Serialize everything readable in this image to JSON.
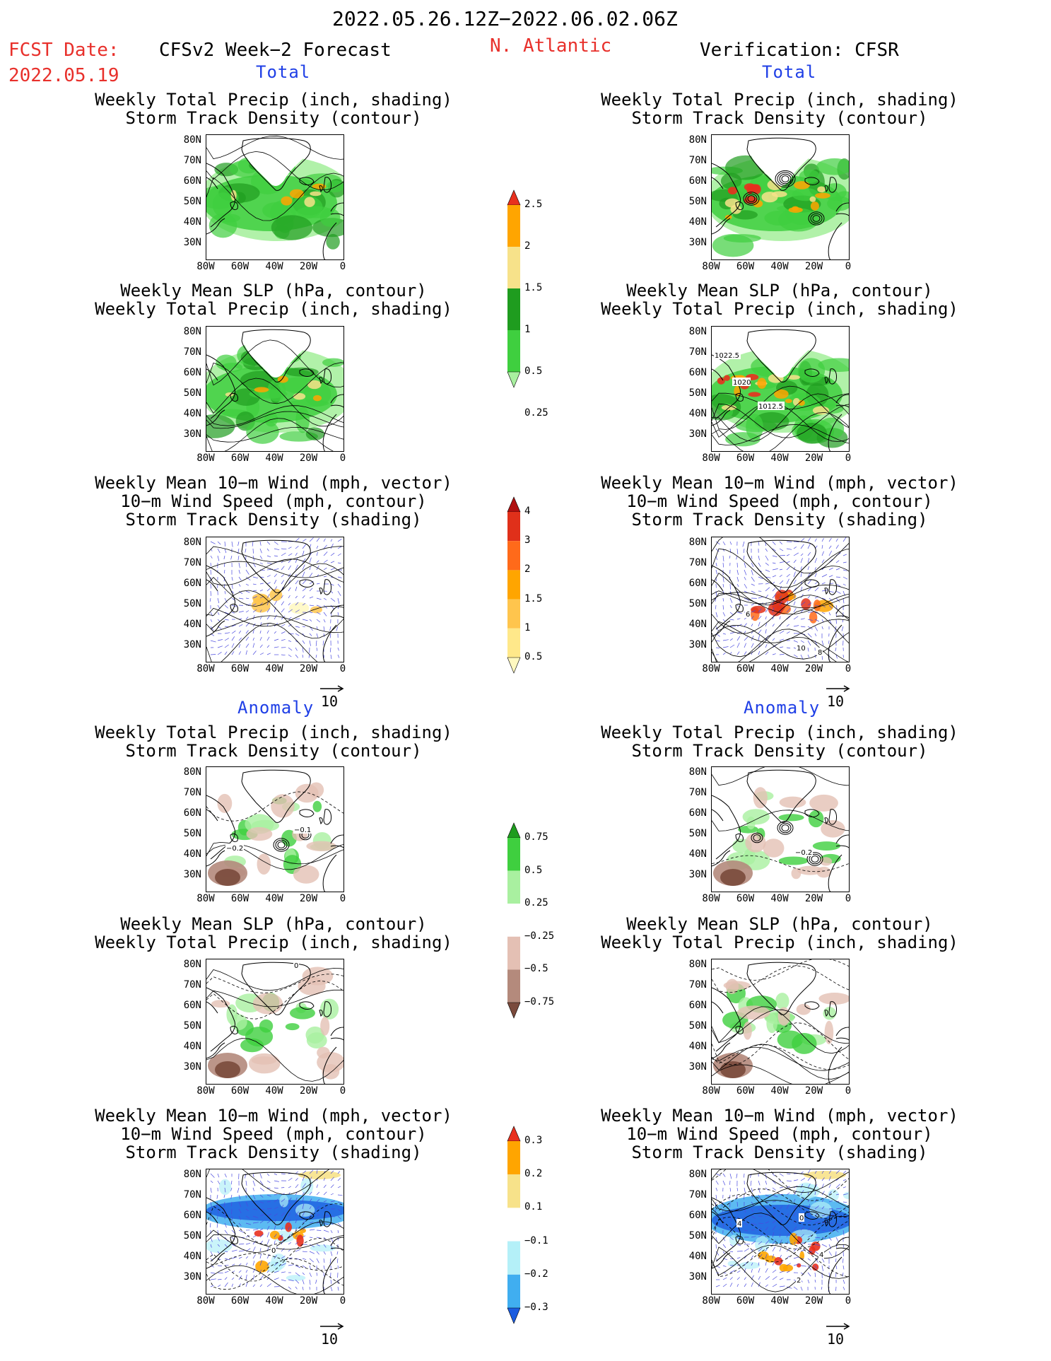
{
  "header": {
    "period": "2022.05.26.12Z−2022.06.02.06Z",
    "fcst_date_label": "FCST Date:",
    "fcst_date": "2022.05.19",
    "left_title": "CFSv2 Week−2 Forecast",
    "region": "N. Atlantic",
    "right_title": "Verification: CFSR"
  },
  "sections": {
    "total": "Total",
    "anomaly": "Anomaly"
  },
  "panel_titles": {
    "precip_track": [
      "Weekly Total Precip (inch, shading)",
      "Storm Track Density (contour)"
    ],
    "slp_precip": [
      "Weekly Mean SLP (hPa, contour)",
      "Weekly Total Precip (inch, shading)"
    ],
    "wind": [
      "Weekly Mean 10−m Wind (mph, vector)",
      "10−m Wind Speed (mph, contour)",
      "Storm Track Density (shading)"
    ]
  },
  "axes": {
    "lat_labels": [
      "80N",
      "70N",
      "60N",
      "50N",
      "40N",
      "30N"
    ],
    "lon_labels": [
      "80W",
      "60W",
      "40W",
      "20W",
      "0"
    ]
  },
  "ref_vector": "10",
  "contour_labels": {
    "slp_verif": [
      "1022.5",
      "1020",
      "1012.5"
    ],
    "wind_verif": [
      "6",
      "10",
      "8"
    ],
    "anom_track_fcst": [
      "−0.1",
      "−0.2"
    ],
    "anom_track_verif": [
      "−0.2"
    ],
    "anom_slp_fcst": [
      "0"
    ],
    "anom_wind_fcst": [
      "0"
    ],
    "anom_wind_verif": [
      "4",
      "0",
      "4",
      "2"
    ]
  },
  "colorbars": {
    "precip_total": {
      "labels": [
        "2.5",
        "2",
        "1.5",
        "1",
        "0.5",
        "0.25"
      ],
      "colors": [
        "#e8301e",
        "#ffa500",
        "#f7e28a",
        "#1f9c1f",
        "#3fcf3f",
        "#a9f0a0"
      ]
    },
    "track_total": {
      "labels": [
        "4",
        "3",
        "2",
        "1.5",
        "1",
        "0.5"
      ],
      "colors": [
        "#b01010",
        "#e0301a",
        "#ff6a1a",
        "#ffa500",
        "#ffc54d",
        "#ffe88a",
        "#fff8c0"
      ]
    },
    "precip_anom": {
      "labels": [
        "0.75",
        "0.5",
        "0.25",
        "−0.25",
        "−0.5",
        "−0.75"
      ],
      "colors": [
        "#1f9c1f",
        "#3fcf3f",
        "#a9f0a0",
        "#ffffff",
        "#e4c0b4",
        "#b48a7c",
        "#7a4a3c"
      ]
    },
    "track_anom": {
      "labels": [
        "0.3",
        "0.2",
        "0.1",
        "−0.1",
        "−0.2",
        "−0.3"
      ],
      "colors": [
        "#e8301e",
        "#ffa500",
        "#f7e28a",
        "#ffffff",
        "#b4f0f8",
        "#40aef0",
        "#1a5ce0"
      ]
    }
  }
}
